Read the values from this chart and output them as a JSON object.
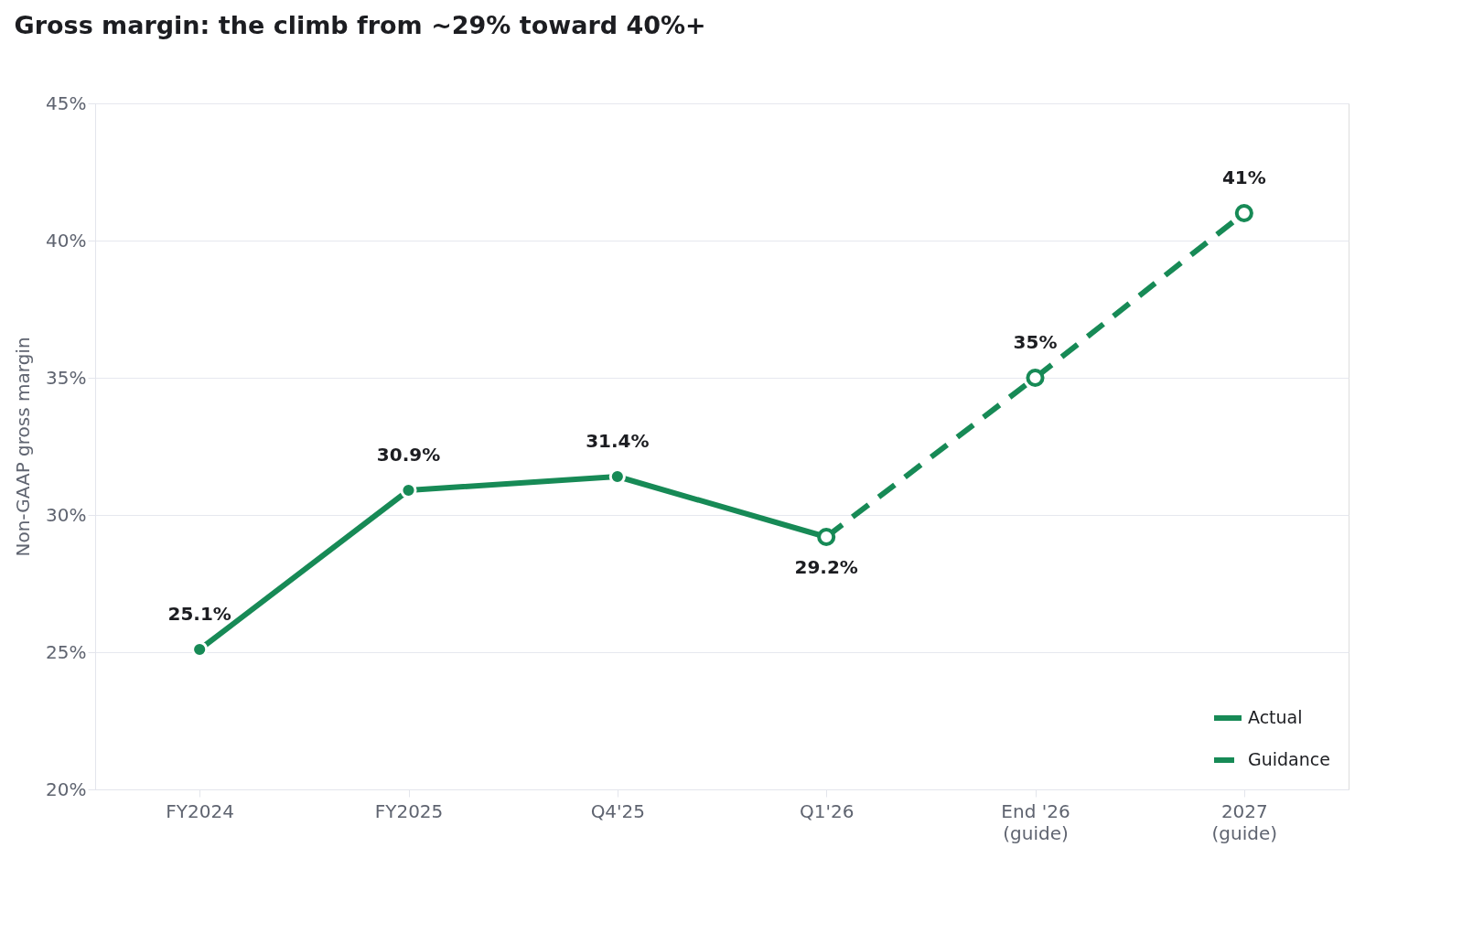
{
  "chart_data": {
    "type": "line",
    "title": "Gross margin: the climb from ~29% toward 40%+",
    "ylabel": "Non-GAAP gross margin",
    "categories": [
      "FY2024",
      "FY2025",
      "Q4'25",
      "Q1'26",
      "End '26\n(guide)",
      "2027\n(guide)"
    ],
    "series": [
      {
        "name": "Actual",
        "color": "#178a56",
        "line_style": "solid",
        "values": [
          25.1,
          30.9,
          31.4,
          29.2,
          null,
          null
        ],
        "value_labels": [
          "25.1%",
          "30.9%",
          "31.4%",
          "29.2%",
          null,
          null
        ]
      },
      {
        "name": "Guidance",
        "color": "#178a56",
        "line_style": "dashed",
        "values": [
          null,
          null,
          null,
          29.2,
          35,
          41
        ],
        "value_labels": [
          null,
          null,
          null,
          null,
          "35%",
          "41%"
        ]
      }
    ],
    "ylim": [
      20,
      45
    ],
    "yticks": [
      {
        "value": 20,
        "label": "20%"
      },
      {
        "value": 25,
        "label": "25%"
      },
      {
        "value": 30,
        "label": "30%"
      },
      {
        "value": 35,
        "label": "35%"
      },
      {
        "value": 40,
        "label": "40%"
      },
      {
        "value": 45,
        "label": "45%"
      }
    ],
    "grid": "y",
    "marker": "circle",
    "legend": "bottom right"
  }
}
